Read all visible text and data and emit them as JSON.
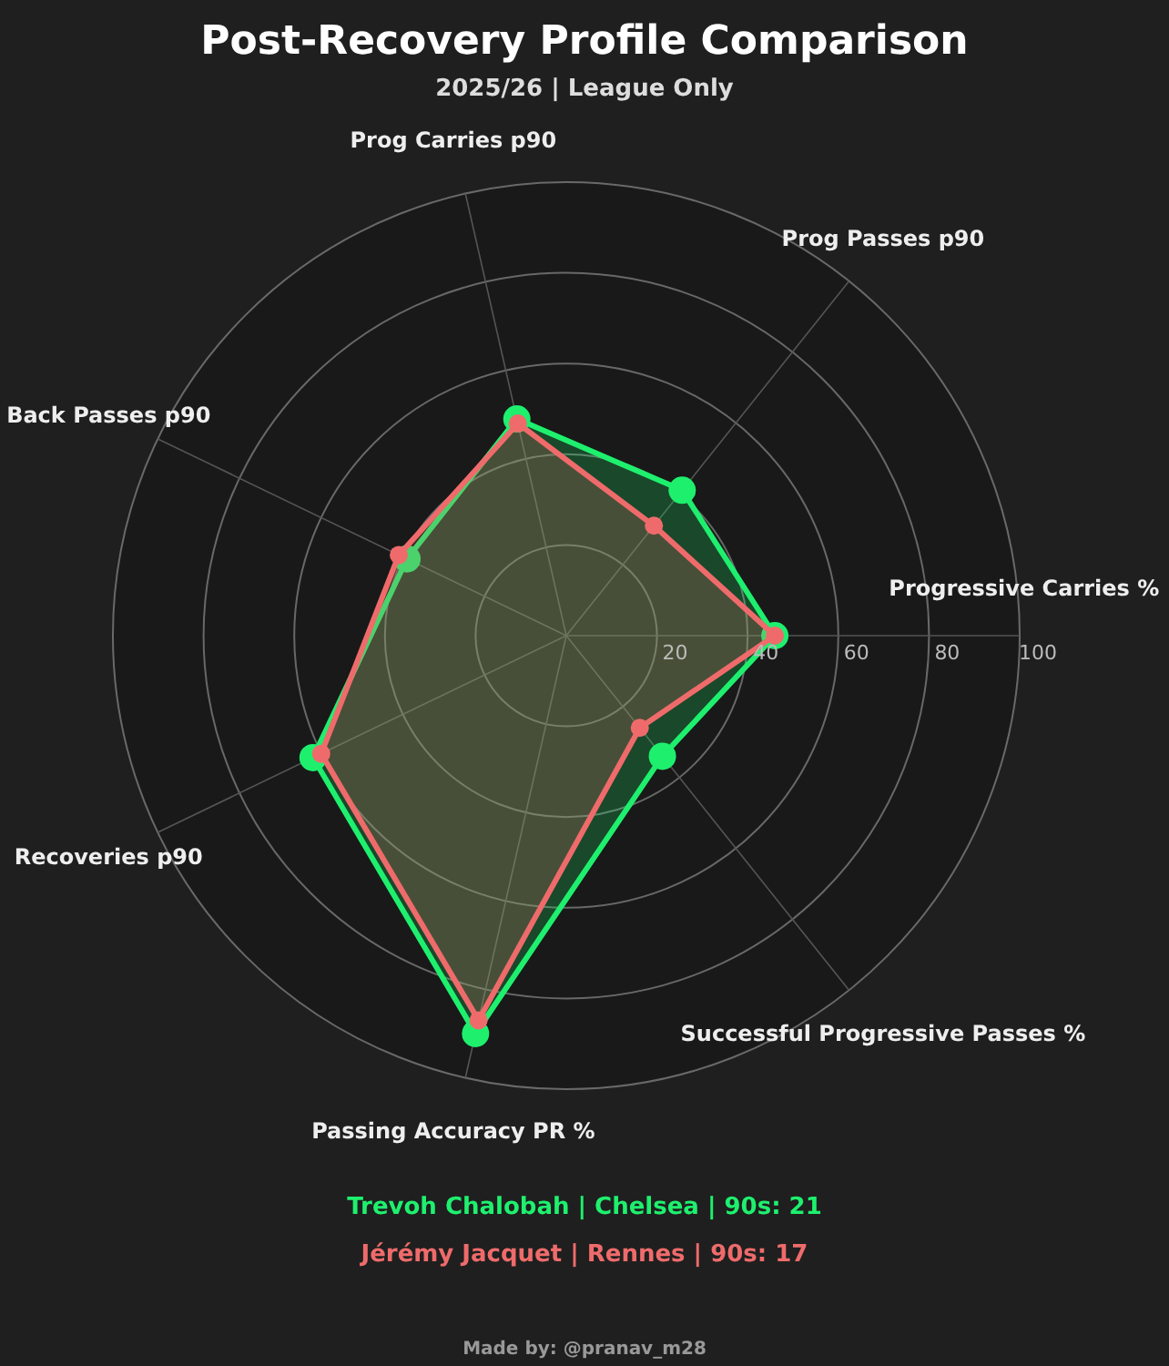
{
  "chart_data": {
    "type": "radar",
    "title": "Post-Recovery Profile Comparison",
    "subtitle": "2025/26 | League Only",
    "categories": [
      "Prog Carries p90",
      "Prog Passes p90",
      "Progressive Carries %",
      "Successful Progressive Passes %",
      "Passing Accuracy PR %",
      "Recoveries p90",
      "Back Passes p90"
    ],
    "ylim": [
      0,
      100
    ],
    "yticks": [
      20,
      40,
      60,
      80,
      100
    ],
    "grid": true,
    "legend": "bottom",
    "marker": "circle",
    "series": [
      {
        "name": "Trevoh Chalobah | Chelsea | 90s: 21",
        "color": "#1ef06e",
        "values": [
          49,
          41,
          46,
          34,
          90,
          62,
          39
        ]
      },
      {
        "name": "Jérémy Jacquet | Rennes | 90s: 17",
        "color": "#ef6b6b",
        "values": [
          48,
          31,
          46,
          26,
          87,
          60,
          41
        ]
      }
    ],
    "annotations": [
      "Made by: @pranav_m28"
    ]
  }
}
